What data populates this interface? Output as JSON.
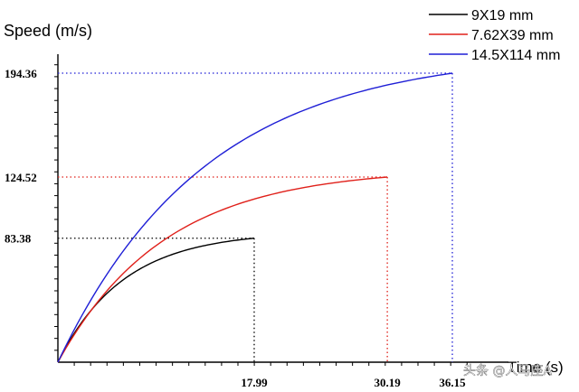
{
  "chart_data": {
    "type": "line",
    "ylabel": "Speed (m/s)",
    "xlabel": "Time (s)",
    "x_tick_labels": [
      "17.99",
      "30.19",
      "36.15"
    ],
    "y_tick_labels": [
      "83.38",
      "124.52",
      "194.36"
    ],
    "xlim": [
      0,
      38.3
    ],
    "ylim": [
      0,
      200
    ],
    "series": [
      {
        "name": "9X19 mm",
        "color": "#000000",
        "tau": 6.0,
        "end_x": 17.99,
        "end_y": 83.38,
        "x": [
          0,
          2,
          4,
          6,
          8,
          10,
          12,
          14,
          16,
          17.99
        ],
        "y": [
          0,
          24.8,
          42.3,
          55.1,
          64.1,
          70.5,
          75.1,
          78.2,
          80.6,
          83.38
        ]
      },
      {
        "name": "7.62X39 mm",
        "color": "#e0201a",
        "tau": 9.8,
        "end_x": 30.19,
        "end_y": 124.52,
        "x": [
          0,
          4,
          8,
          12,
          16,
          20,
          24,
          28,
          30.19
        ],
        "y": [
          0,
          42.1,
          70.3,
          89.2,
          101.9,
          110.4,
          116.1,
          119.9,
          124.52
        ]
      },
      {
        "name": "14.5X114 mm",
        "color": "#1f1fd6",
        "tau": 13.5,
        "end_x": 36.15,
        "end_y": 194.36,
        "x": [
          0,
          4,
          8,
          12,
          16,
          20,
          24,
          28,
          32,
          36.15
        ],
        "y": [
          0,
          50.0,
          87.2,
          114.9,
          135.5,
          150.8,
          162.2,
          170.6,
          176.9,
          194.36
        ]
      }
    ],
    "legend_position": "top-right",
    "grid": false
  },
  "watermark": "头条 @人马座A"
}
